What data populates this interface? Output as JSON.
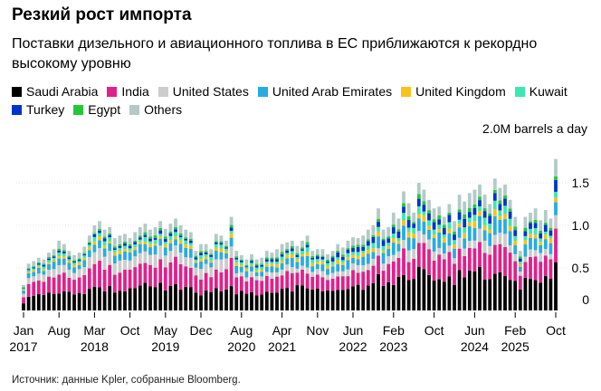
{
  "chart_data": {
    "type": "bar",
    "stacked": true,
    "title": "Резкий рост импорта",
    "subtitle": "Поставки дизельного и авиационного топлива в ЕС приближаются к рекордно высокому уровню",
    "ylabel": "2.0M barrels a day",
    "ylim": [
      0,
      2.0
    ],
    "yticks": [
      {
        "label": "0",
        "value": 0
      },
      {
        "label": "0.5",
        "value": 0.5
      },
      {
        "label": "1.0",
        "value": 1.0
      },
      {
        "label": "1.5",
        "value": 1.5
      }
    ],
    "start": "2017-01",
    "months": 106,
    "xticks": [
      {
        "idx": 0,
        "line1": "Jan",
        "line2": "2017"
      },
      {
        "idx": 7,
        "line1": "Aug",
        "line2": ""
      },
      {
        "idx": 14,
        "line1": "Mar",
        "line2": "2018"
      },
      {
        "idx": 21,
        "line1": "Oct",
        "line2": ""
      },
      {
        "idx": 28,
        "line1": "May",
        "line2": "2019"
      },
      {
        "idx": 35,
        "line1": "Dec",
        "line2": ""
      },
      {
        "idx": 43,
        "line1": "Aug",
        "line2": "2020"
      },
      {
        "idx": 51,
        "line1": "Apr",
        "line2": "2021"
      },
      {
        "idx": 58,
        "line1": "Nov",
        "line2": ""
      },
      {
        "idx": 65,
        "line1": "Jun",
        "line2": "2022"
      },
      {
        "idx": 73,
        "line1": "Feb",
        "line2": "2023"
      },
      {
        "idx": 81,
        "line1": "Oct",
        "line2": ""
      },
      {
        "idx": 89,
        "line1": "Jun",
        "line2": "2024"
      },
      {
        "idx": 97,
        "line1": "Feb",
        "line2": "2025"
      },
      {
        "idx": 105,
        "line1": "Oct",
        "line2": ""
      }
    ],
    "legend": [
      {
        "name": "Saudi Arabia",
        "color": "#000000"
      },
      {
        "name": "India",
        "color": "#e0218a"
      },
      {
        "name": "United States",
        "color": "#cccccc"
      },
      {
        "name": "United Arab Emirates",
        "color": "#29abe2"
      },
      {
        "name": "United Kingdom",
        "color": "#f7c21b"
      },
      {
        "name": "Kuwait",
        "color": "#3be8b0"
      },
      {
        "name": "Turkey",
        "color": "#0033cc"
      },
      {
        "name": "Egypt",
        "color": "#22c83a"
      },
      {
        "name": "Others",
        "color": "#b3cac7"
      }
    ],
    "totals": [
      0.3,
      0.55,
      0.58,
      0.62,
      0.6,
      0.68,
      0.72,
      0.82,
      0.78,
      0.7,
      0.65,
      0.68,
      0.75,
      0.88,
      1.0,
      1.05,
      0.95,
      0.98,
      0.85,
      0.88,
      0.9,
      0.85,
      0.92,
      0.98,
      1.02,
      0.95,
      0.98,
      1.05,
      0.96,
      1.02,
      1.08,
      1.0,
      0.95,
      0.92,
      0.7,
      0.78,
      0.78,
      0.72,
      0.9,
      0.88,
      0.82,
      1.1,
      0.7,
      0.65,
      0.6,
      0.66,
      0.6,
      0.62,
      0.7,
      0.68,
      0.72,
      0.78,
      0.8,
      0.82,
      0.76,
      0.82,
      0.88,
      0.7,
      0.72,
      0.72,
      0.66,
      0.7,
      0.78,
      0.74,
      0.82,
      0.86,
      0.85,
      0.88,
      0.95,
      1.0,
      1.2,
      0.95,
      0.98,
      1.15,
      1.08,
      1.4,
      1.26,
      1.15,
      1.5,
      1.42,
      1.3,
      1.2,
      1.22,
      1.1,
      1.25,
      1.05,
      1.36,
      1.28,
      1.38,
      1.42,
      1.48,
      1.36,
      1.25,
      1.55,
      1.44,
      1.48,
      1.3,
      1.1,
      0.7,
      1.1,
      1.15,
      1.2,
      1.06,
      1.18,
      1.08,
      1.78
    ],
    "notes": "Monthly stacked bars, Jan 2017 – Oct 2025; country split estimated from visual."
  },
  "source": "Источник: данные Kpler, собранные Bloomberg."
}
